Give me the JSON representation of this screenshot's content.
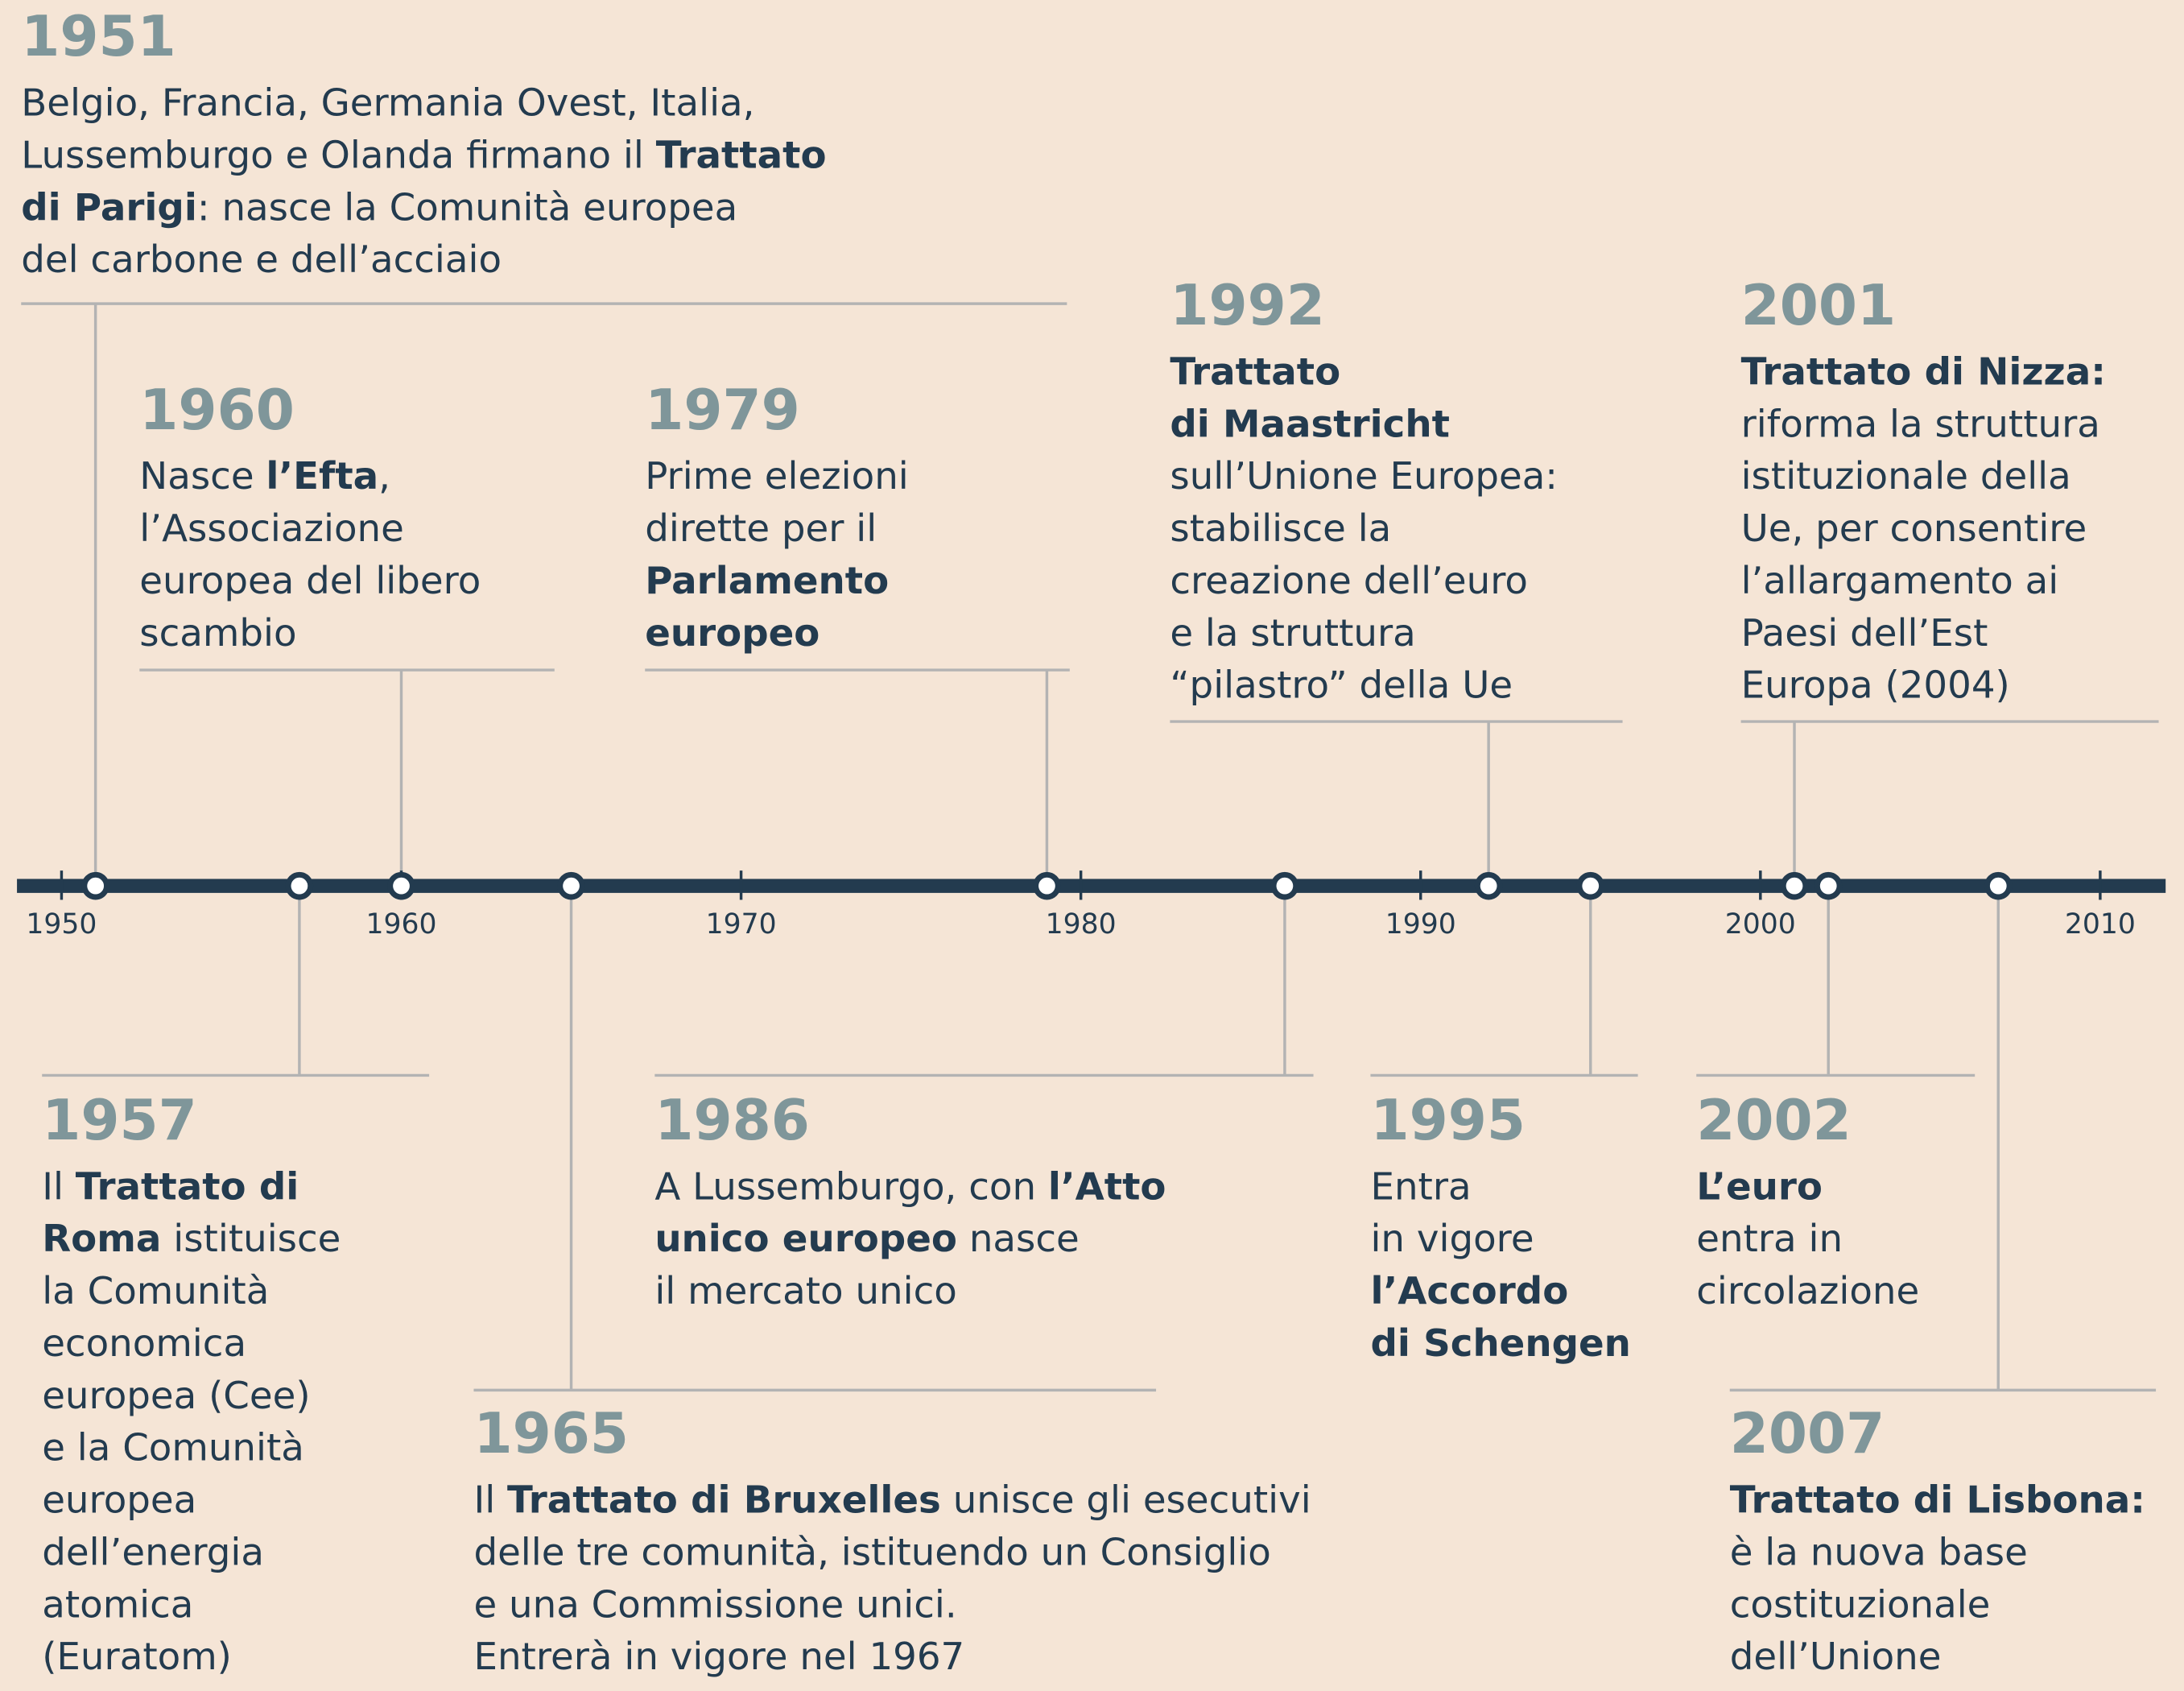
{
  "axis": {
    "ticks": [
      1950,
      1960,
      1970,
      1980,
      1990,
      2000,
      2010
    ]
  },
  "events": [
    {
      "year": 1951,
      "lines": [
        [
          {
            "text": "Belgio, Francia, Germania Ovest, Italia,"
          }
        ],
        [
          {
            "text": "Lussemburgo e Olanda firmano il "
          },
          {
            "text": "Trattato",
            "bold": true
          }
        ],
        [
          {
            "text": "di Parigi",
            "bold": true
          },
          {
            "text": ": nasce la Comunità europea"
          }
        ],
        [
          {
            "text": "del carbone e dell’acciaio"
          }
        ]
      ]
    },
    {
      "year": 1957,
      "lines": [
        [
          {
            "text": "Il "
          },
          {
            "text": "Trattato di",
            "bold": true
          }
        ],
        [
          {
            "text": "Roma",
            "bold": true
          },
          {
            "text": " istituisce"
          }
        ],
        [
          {
            "text": "la Comunità"
          }
        ],
        [
          {
            "text": "economica"
          }
        ],
        [
          {
            "text": "europea (Cee)"
          }
        ],
        [
          {
            "text": "e la Comunità"
          }
        ],
        [
          {
            "text": "europea"
          }
        ],
        [
          {
            "text": "dell’energia"
          }
        ],
        [
          {
            "text": "atomica"
          }
        ],
        [
          {
            "text": "(Euratom)"
          }
        ]
      ]
    },
    {
      "year": 1960,
      "lines": [
        [
          {
            "text": "Nasce "
          },
          {
            "text": "l’Efta",
            "bold": true
          },
          {
            "text": ","
          }
        ],
        [
          {
            "text": "l’Associazione"
          }
        ],
        [
          {
            "text": "europea del libero"
          }
        ],
        [
          {
            "text": "scambio"
          }
        ]
      ]
    },
    {
      "year": 1965,
      "lines": [
        [
          {
            "text": "Il "
          },
          {
            "text": "Trattato di Bruxelles",
            "bold": true
          },
          {
            "text": " unisce gli esecutivi"
          }
        ],
        [
          {
            "text": "delle tre comunità, istituendo un Consiglio"
          }
        ],
        [
          {
            "text": "e una Commissione unici."
          }
        ],
        [
          {
            "text": "Entrerà in vigore nel 1967"
          }
        ]
      ]
    },
    {
      "year": 1979,
      "lines": [
        [
          {
            "text": "Prime elezioni"
          }
        ],
        [
          {
            "text": "dirette per il"
          }
        ],
        [
          {
            "text": "Parlamento",
            "bold": true
          }
        ],
        [
          {
            "text": "europeo",
            "bold": true
          }
        ]
      ]
    },
    {
      "year": 1986,
      "lines": [
        [
          {
            "text": "A Lussemburgo, con "
          },
          {
            "text": "l’Atto",
            "bold": true
          }
        ],
        [
          {
            "text": "unico europeo",
            "bold": true
          },
          {
            "text": " nasce"
          }
        ],
        [
          {
            "text": "il mercato unico"
          }
        ]
      ]
    },
    {
      "year": 1992,
      "lines": [
        [
          {
            "text": "Trattato",
            "bold": true
          }
        ],
        [
          {
            "text": "di Maastricht",
            "bold": true
          }
        ],
        [
          {
            "text": "sull’Unione Europea:"
          }
        ],
        [
          {
            "text": "stabilisce la"
          }
        ],
        [
          {
            "text": "creazione dell’euro"
          }
        ],
        [
          {
            "text": "e la struttura"
          }
        ],
        [
          {
            "text": "“pilastro” della Ue"
          }
        ]
      ]
    },
    {
      "year": 1995,
      "lines": [
        [
          {
            "text": "Entra"
          }
        ],
        [
          {
            "text": "in vigore"
          }
        ],
        [
          {
            "text": "l’Accordo",
            "bold": true
          }
        ],
        [
          {
            "text": "di Schengen",
            "bold": true
          }
        ]
      ]
    },
    {
      "year": 2001,
      "lines": [
        [
          {
            "text": "Trattato di Nizza:",
            "bold": true
          }
        ],
        [
          {
            "text": "riforma la struttura"
          }
        ],
        [
          {
            "text": "istituzionale della"
          }
        ],
        [
          {
            "text": "Ue, per consentire"
          }
        ],
        [
          {
            "text": "l’allargamento ai"
          }
        ],
        [
          {
            "text": "Paesi dell’Est"
          }
        ],
        [
          {
            "text": "Europa (2004)"
          }
        ]
      ]
    },
    {
      "year": 2002,
      "lines": [
        [
          {
            "text": "L’euro",
            "bold": true
          }
        ],
        [
          {
            "text": "entra in"
          }
        ],
        [
          {
            "text": "circolazione"
          }
        ]
      ]
    },
    {
      "year": 2007,
      "lines": [
        [
          {
            "text": "Trattato di Lisbona:",
            "bold": true
          }
        ],
        [
          {
            "text": "è la nuova base"
          }
        ],
        [
          {
            "text": "costituzionale"
          }
        ],
        [
          {
            "text": "dell’Unione"
          }
        ]
      ]
    }
  ]
}
